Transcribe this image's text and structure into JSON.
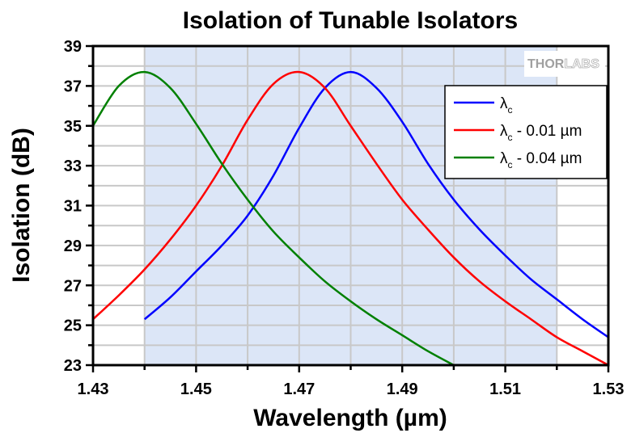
{
  "chart_data": {
    "type": "line",
    "title": "Isolation of Tunable Isolators",
    "xlabel": "Wavelength (µm)",
    "ylabel": "Isolation (dB)",
    "xlim": [
      1.43,
      1.53
    ],
    "ylim": [
      23,
      39
    ],
    "xticks": [
      1.43,
      1.45,
      1.47,
      1.49,
      1.51,
      1.53
    ],
    "xtick_labels": [
      "1.43",
      "1.45",
      "1.47",
      "1.49",
      "1.51",
      "1.53"
    ],
    "xminor": [
      1.44,
      1.46,
      1.48,
      1.5,
      1.52
    ],
    "yticks": [
      23,
      25,
      27,
      29,
      31,
      33,
      35,
      37,
      39
    ],
    "ytick_labels": [
      "23",
      "25",
      "27",
      "29",
      "31",
      "33",
      "35",
      "37",
      "39"
    ],
    "yminor": [
      24,
      26,
      28,
      30,
      32,
      34,
      36,
      38
    ],
    "grid": true,
    "shaded_region": {
      "x_from": 1.44,
      "x_to": 1.52,
      "color": "#dce6f7"
    },
    "legend": {
      "placement": "top-right"
    },
    "watermark": {
      "text_dark": "THOR",
      "text_light": "LABS"
    },
    "series": [
      {
        "name": "λc",
        "legend_main": "λ",
        "legend_sub": "c",
        "legend_suffix": "",
        "color": "#0000ff",
        "x": [
          1.44,
          1.445,
          1.45,
          1.455,
          1.46,
          1.465,
          1.47,
          1.475,
          1.48,
          1.485,
          1.49,
          1.495,
          1.5,
          1.505,
          1.51,
          1.515,
          1.52,
          1.525,
          1.53
        ],
        "y": [
          25.3,
          26.4,
          27.7,
          29.0,
          30.5,
          32.5,
          34.9,
          36.9,
          37.7,
          36.9,
          35.2,
          33.1,
          31.3,
          29.8,
          28.5,
          27.3,
          26.3,
          25.3,
          24.4
        ]
      },
      {
        "name": "λc - 0.01 µm",
        "legend_main": "λ",
        "legend_sub": "c",
        "legend_suffix": " - 0.01 µm",
        "color": "#ff0000",
        "x": [
          1.43,
          1.435,
          1.44,
          1.445,
          1.45,
          1.455,
          1.46,
          1.465,
          1.47,
          1.475,
          1.48,
          1.485,
          1.49,
          1.495,
          1.5,
          1.505,
          1.51,
          1.515,
          1.52,
          1.525,
          1.53
        ],
        "y": [
          25.3,
          26.5,
          27.8,
          29.3,
          31.0,
          33.0,
          35.3,
          37.1,
          37.7,
          36.9,
          35.0,
          33.1,
          31.3,
          29.8,
          28.4,
          27.2,
          26.2,
          25.3,
          24.4,
          23.7,
          23.0
        ]
      },
      {
        "name": "λc - 0.04 µm",
        "legend_main": "λ",
        "legend_sub": "c",
        "legend_suffix": " - 0.04 µm",
        "color": "#008000",
        "x": [
          1.43,
          1.435,
          1.44,
          1.445,
          1.45,
          1.455,
          1.46,
          1.465,
          1.47,
          1.475,
          1.48,
          1.485,
          1.49,
          1.495,
          1.5
        ],
        "y": [
          35.0,
          37.0,
          37.7,
          36.9,
          35.1,
          33.1,
          31.3,
          29.7,
          28.4,
          27.2,
          26.2,
          25.3,
          24.5,
          23.7,
          23.0
        ]
      }
    ]
  }
}
